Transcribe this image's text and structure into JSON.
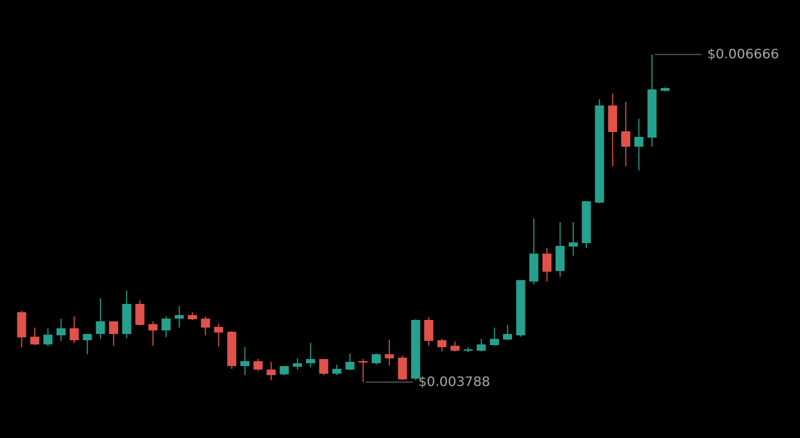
{
  "chart_data": {
    "type": "candlestick",
    "up_color": "#26a08f",
    "down_color": "#e0524a",
    "open": [
      0.004402,
      0.004187,
      0.004119,
      0.004199,
      0.004261,
      0.004156,
      0.004211,
      0.004322,
      0.004211,
      0.004475,
      0.004297,
      0.004242,
      0.004346,
      0.004377,
      0.004346,
      0.004273,
      0.00423,
      0.003929,
      0.003972,
      0.003898,
      0.003856,
      0.003923,
      0.003954,
      0.003991,
      0.003862,
      0.003898,
      0.003972,
      0.003954,
      0.004033,
      0.004003,
      0.003819,
      0.004334,
      0.004156,
      0.004107,
      0.004064,
      0.004064,
      0.004113,
      0.004162,
      0.004199,
      0.004672,
      0.004917,
      0.004764,
      0.004979,
      0.005009,
      0.005365,
      0.006218,
      0.005991,
      0.005856,
      0.005936,
      0.006347
    ],
    "high": [
      0.004414,
      0.004267,
      0.004261,
      0.004346,
      0.004365,
      0.004211,
      0.004524,
      0.004322,
      0.004592,
      0.004506,
      0.004322,
      0.004365,
      0.004457,
      0.004402,
      0.004365,
      0.004303,
      0.004236,
      0.004095,
      0.003991,
      0.003966,
      0.003929,
      0.003997,
      0.004132,
      0.003991,
      0.003941,
      0.00404,
      0.003991,
      0.00404,
      0.004162,
      0.004021,
      0.00434,
      0.004359,
      0.004168,
      0.004144,
      0.004095,
      0.004168,
      0.004267,
      0.004291,
      0.004684,
      0.005224,
      0.004966,
      0.005193,
      0.005193,
      0.005377,
      0.006273,
      0.006322,
      0.006249,
      0.006101,
      0.006666,
      0.006378
    ],
    "low": [
      0.004095,
      0.004113,
      0.004101,
      0.00415,
      0.004132,
      0.004033,
      0.004168,
      0.004107,
      0.004175,
      0.004285,
      0.004107,
      0.004181,
      0.004267,
      0.004334,
      0.004199,
      0.004101,
      0.003905,
      0.003849,
      0.003886,
      0.003806,
      0.003849,
      0.003898,
      0.003917,
      0.003849,
      0.003849,
      0.003892,
      0.003788,
      0.003941,
      0.003935,
      0.003806,
      0.003806,
      0.004107,
      0.004058,
      0.004058,
      0.004052,
      0.004058,
      0.004107,
      0.004156,
      0.004187,
      0.004647,
      0.004672,
      0.004715,
      0.004899,
      0.004966,
      0.005359,
      0.005684,
      0.005684,
      0.005647,
      0.005856,
      0.006341
    ],
    "close": [
      0.004181,
      0.004119,
      0.004205,
      0.004261,
      0.004156,
      0.004211,
      0.004322,
      0.004211,
      0.004475,
      0.004291,
      0.004242,
      0.004346,
      0.004377,
      0.00434,
      0.004267,
      0.004224,
      0.003929,
      0.003972,
      0.003898,
      0.003849,
      0.003929,
      0.003954,
      0.003991,
      0.003862,
      0.003905,
      0.003966,
      0.00396,
      0.004033,
      0.003997,
      0.003812,
      0.004334,
      0.00415,
      0.004095,
      0.004064,
      0.004076,
      0.004119,
      0.004168,
      0.004211,
      0.004684,
      0.004917,
      0.004758,
      0.004985,
      0.005015,
      0.005377,
      0.006218,
      0.005985,
      0.005856,
      0.005942,
      0.006359,
      0.006371
    ],
    "annotations": [
      {
        "value": 0.006666,
        "label": "$0.006666"
      },
      {
        "value": 0.003788,
        "label": "$0.003788"
      }
    ]
  }
}
